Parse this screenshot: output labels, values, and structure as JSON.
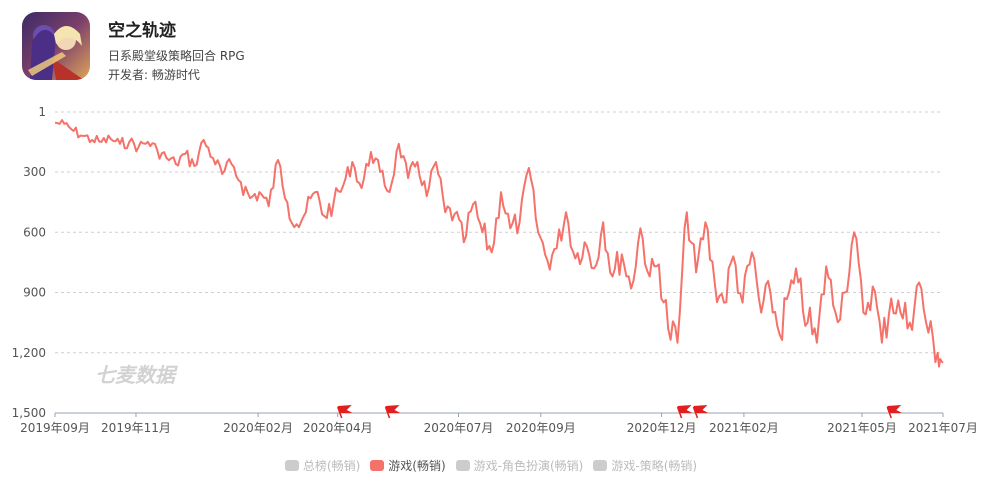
{
  "app": {
    "title": "空之轨迹",
    "subtitle": "日系殿堂级策略回合 RPG",
    "developer": "开发者: 畅游时代",
    "icon_name": "game-app-icon"
  },
  "watermark": "七麦数据",
  "legend": [
    {
      "label": "总榜(畅销)",
      "active": false,
      "color": "#cccccc"
    },
    {
      "label": "游戏(畅销)",
      "active": true,
      "color": "#f5726a"
    },
    {
      "label": "游戏-角色扮演(畅销)",
      "active": false,
      "color": "#cccccc"
    },
    {
      "label": "游戏-策略(畅销)",
      "active": false,
      "color": "#cccccc"
    }
  ],
  "chart_data": {
    "type": "line",
    "y_inverted": true,
    "ylim": [
      1,
      1500
    ],
    "y_ticks": [
      "1",
      "300",
      "600",
      "900",
      "1,200",
      "1,500"
    ],
    "x_start": "2019-09-01",
    "x_end": "2021-07-01",
    "x_ticks": [
      {
        "label": "2019年09月",
        "date": "2019-09-01"
      },
      {
        "label": "2019年11月",
        "date": "2019-11-01"
      },
      {
        "label": "2020年02月",
        "date": "2020-02-01"
      },
      {
        "label": "2020年04月",
        "date": "2020-04-01"
      },
      {
        "label": "2020年07月",
        "date": "2020-07-01"
      },
      {
        "label": "2020年09月",
        "date": "2020-09-01"
      },
      {
        "label": "2020年12月",
        "date": "2020-12-01"
      },
      {
        "label": "2021年02月",
        "date": "2021-02-01"
      },
      {
        "label": "2021年05月",
        "date": "2021-05-01"
      },
      {
        "label": "2021年07月",
        "date": "2021-07-01"
      }
    ],
    "event_flags": [
      "2020-04-01",
      "2020-05-07",
      "2020-12-13",
      "2020-12-25",
      "2021-05-20"
    ],
    "grid": true,
    "series": [
      {
        "name": "游戏(畅销)",
        "color": "#f5726a",
        "points": [
          [
            "2019-09-01",
            55
          ],
          [
            "2019-09-08",
            60
          ],
          [
            "2019-09-15",
            95
          ],
          [
            "2019-09-22",
            120
          ],
          [
            "2019-09-29",
            140
          ],
          [
            "2019-10-06",
            150
          ],
          [
            "2019-10-13",
            135
          ],
          [
            "2019-10-20",
            160
          ],
          [
            "2019-10-27",
            150
          ],
          [
            "2019-11-03",
            175
          ],
          [
            "2019-11-10",
            150
          ],
          [
            "2019-11-17",
            190
          ],
          [
            "2019-11-24",
            230
          ],
          [
            "2019-12-01",
            260
          ],
          [
            "2019-12-08",
            210
          ],
          [
            "2019-12-15",
            270
          ],
          [
            "2019-12-22",
            140
          ],
          [
            "2019-12-29",
            230
          ],
          [
            "2020-01-05",
            310
          ],
          [
            "2020-01-12",
            260
          ],
          [
            "2020-01-19",
            350
          ],
          [
            "2020-01-26",
            430
          ],
          [
            "2020-02-02",
            400
          ],
          [
            "2020-02-09",
            470
          ],
          [
            "2020-02-16",
            240
          ],
          [
            "2020-02-23",
            450
          ],
          [
            "2020-03-01",
            560
          ],
          [
            "2020-03-08",
            500
          ],
          [
            "2020-03-15",
            400
          ],
          [
            "2020-03-22",
            520
          ],
          [
            "2020-03-29",
            450
          ],
          [
            "2020-04-05",
            370
          ],
          [
            "2020-04-12",
            250
          ],
          [
            "2020-04-19",
            380
          ],
          [
            "2020-04-26",
            200
          ],
          [
            "2020-05-03",
            300
          ],
          [
            "2020-05-10",
            400
          ],
          [
            "2020-05-17",
            160
          ],
          [
            "2020-05-24",
            330
          ],
          [
            "2020-05-31",
            250
          ],
          [
            "2020-06-07",
            420
          ],
          [
            "2020-06-14",
            250
          ],
          [
            "2020-06-21",
            500
          ],
          [
            "2020-06-28",
            510
          ],
          [
            "2020-07-05",
            650
          ],
          [
            "2020-07-12",
            460
          ],
          [
            "2020-07-19",
            600
          ],
          [
            "2020-07-26",
            700
          ],
          [
            "2020-08-02",
            400
          ],
          [
            "2020-08-09",
            580
          ],
          [
            "2020-08-16",
            550
          ],
          [
            "2020-08-23",
            280
          ],
          [
            "2020-08-30",
            600
          ],
          [
            "2020-09-06",
            740
          ],
          [
            "2020-09-13",
            680
          ],
          [
            "2020-09-20",
            500
          ],
          [
            "2020-09-27",
            730
          ],
          [
            "2020-10-04",
            650
          ],
          [
            "2020-10-11",
            780
          ],
          [
            "2020-10-18",
            550
          ],
          [
            "2020-10-25",
            820
          ],
          [
            "2020-11-01",
            710
          ],
          [
            "2020-11-08",
            880
          ],
          [
            "2020-11-15",
            580
          ],
          [
            "2020-11-22",
            820
          ],
          [
            "2020-11-29",
            760
          ],
          [
            "2020-12-06",
            1080
          ],
          [
            "2020-12-13",
            1150
          ],
          [
            "2020-12-20",
            500
          ],
          [
            "2020-12-27",
            800
          ],
          [
            "2021-01-03",
            550
          ],
          [
            "2021-01-10",
            850
          ],
          [
            "2021-01-17",
            950
          ],
          [
            "2021-01-24",
            720
          ],
          [
            "2021-01-31",
            950
          ],
          [
            "2021-02-07",
            700
          ],
          [
            "2021-02-14",
            1000
          ],
          [
            "2021-02-21",
            900
          ],
          [
            "2021-02-28",
            1110
          ],
          [
            "2021-03-07",
            900
          ],
          [
            "2021-03-14",
            850
          ],
          [
            "2021-03-21",
            1050
          ],
          [
            "2021-03-28",
            1150
          ],
          [
            "2021-04-04",
            770
          ],
          [
            "2021-04-11",
            1000
          ],
          [
            "2021-04-18",
            900
          ],
          [
            "2021-04-25",
            600
          ],
          [
            "2021-05-02",
            1000
          ],
          [
            "2021-05-09",
            870
          ],
          [
            "2021-05-16",
            1150
          ],
          [
            "2021-05-23",
            930
          ],
          [
            "2021-05-30",
            1000
          ],
          [
            "2021-06-06",
            1050
          ],
          [
            "2021-06-13",
            850
          ],
          [
            "2021-06-20",
            1100
          ],
          [
            "2021-06-27",
            1200
          ],
          [
            "2021-07-01",
            1250
          ]
        ]
      }
    ]
  }
}
